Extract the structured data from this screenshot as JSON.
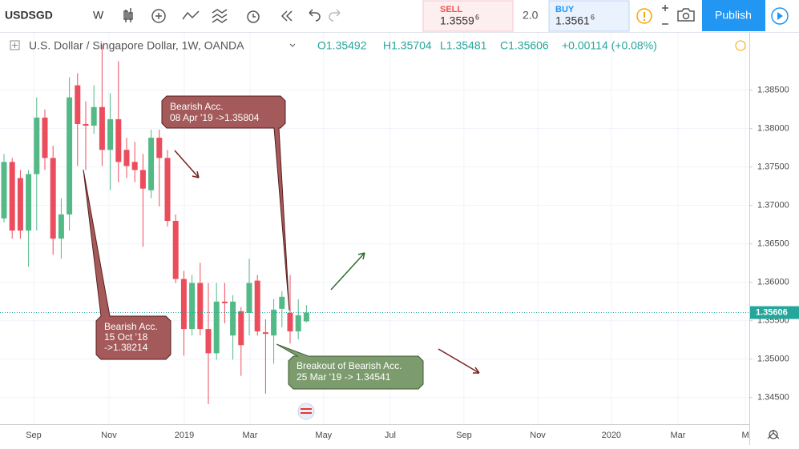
{
  "toolbar": {
    "symbol": "USDSGD",
    "interval": "W",
    "sell_label": "SELL",
    "sell_price": "1.3559",
    "sell_pip": "6",
    "spread": "2.0",
    "buy_label": "BUY",
    "buy_price": "1.3561",
    "buy_pip": "6",
    "publish": "Publish"
  },
  "legend": {
    "title": "U.S. Dollar / Singapore Dollar, 1W, OANDA",
    "open": "O1.35492",
    "high": "H1.35704",
    "low": "L1.35481",
    "close": "C1.35606",
    "change": "+0.00114 (+0.08%)"
  },
  "chart_data": {
    "type": "candlestick",
    "series": [
      {
        "up_color": "#53b987",
        "down_color": "#eb4d5c",
        "open": [
          1.36831,
          1.37566,
          1.37356,
          1.36673,
          1.37408,
          1.38143,
          1.37618,
          1.36568,
          1.36883,
          1.38563,
          1.38059,
          1.38038,
          1.3828,
          1.37723,
          1.38122,
          1.37723,
          1.37566,
          1.37461,
          1.37198,
          1.37881,
          1.37618,
          1.36799,
          1.36043,
          1.35392,
          1.35991,
          1.35392,
          1.35077,
          1.35749,
          1.35308,
          1.35623,
          1.35602,
          1.36022,
          1.3535,
          1.35308,
          1.35655,
          1.35602,
          1.35361,
          1.35492
        ],
        "high": [
          1.37671,
          1.37618,
          1.37461,
          1.37461,
          1.38406,
          1.38248,
          1.37776,
          1.37093,
          1.38668,
          1.38721,
          1.38353,
          1.38563,
          1.39088,
          1.38458,
          1.38878,
          1.37881,
          1.37828,
          1.37671,
          1.37986,
          1.37986,
          1.37723,
          1.36883,
          1.36148,
          1.36096,
          1.36253,
          1.35991,
          1.35991,
          1.35991,
          1.35833,
          1.35676,
          1.36306,
          1.36096,
          1.35518,
          1.35781,
          1.35886,
          1.36096,
          1.35781,
          1.35704
        ],
        "low": [
          1.36778,
          1.36568,
          1.36568,
          1.36201,
          1.36673,
          1.37461,
          1.36358,
          1.36306,
          1.36673,
          1.37513,
          1.37461,
          1.37933,
          1.37513,
          1.37198,
          1.37303,
          1.37356,
          1.37303,
          1.36463,
          1.37093,
          1.36988,
          1.36726,
          1.35991,
          1.35046,
          1.35308,
          1.35308,
          1.34416,
          1.34993,
          1.35466,
          1.34993,
          1.34783,
          1.35308,
          1.35308,
          1.34552,
          1.34941,
          1.35413,
          1.35203,
          1.35256,
          1.35481
        ],
        "close": [
          1.37566,
          1.36673,
          1.36673,
          1.37408,
          1.38143,
          1.37618,
          1.36568,
          1.36883,
          1.38406,
          1.38059,
          1.38038,
          1.3828,
          1.37723,
          1.38122,
          1.37566,
          1.37513,
          1.37461,
          1.37219,
          1.37881,
          1.37618,
          1.36799,
          1.36043,
          1.35392,
          1.35991,
          1.35392,
          1.35077,
          1.35749,
          1.35728,
          1.35749,
          1.35182,
          1.35991,
          1.35361,
          1.35329,
          1.35644,
          1.35812,
          1.35361,
          1.35571,
          1.35606
        ]
      }
    ],
    "last_price": 1.35606,
    "last_price_color": "#26a69a",
    "ylim": [
      1.34206,
      1.39246
    ],
    "yticks": [
      {
        "value": 1.345,
        "label": "1.34500"
      },
      {
        "value": 1.35,
        "label": "1.35000"
      },
      {
        "value": 1.355,
        "label": "1.35500"
      },
      {
        "value": 1.36,
        "label": "1.36000"
      },
      {
        "value": 1.365,
        "label": "1.36500"
      },
      {
        "value": 1.37,
        "label": "1.37000"
      },
      {
        "value": 1.375,
        "label": "1.37500"
      },
      {
        "value": 1.38,
        "label": "1.38000"
      },
      {
        "value": 1.385,
        "label": "1.38500"
      }
    ],
    "xlim": [
      -0.49,
      91.18
    ],
    "xticks": [
      {
        "value": 3.63,
        "label": "Sep"
      },
      {
        "value": 12.84,
        "label": "Nov"
      },
      {
        "value": 22.06,
        "label": "2019"
      },
      {
        "value": 30.1,
        "label": "Mar"
      },
      {
        "value": 39.1,
        "label": "May"
      },
      {
        "value": 47.25,
        "label": "Jul"
      },
      {
        "value": 56.27,
        "label": "Sep"
      },
      {
        "value": 65.3,
        "label": "Nov"
      },
      {
        "value": 74.3,
        "label": "2020"
      },
      {
        "value": 82.45,
        "label": "Mar"
      },
      {
        "value": 90.7,
        "label": "M"
      }
    ],
    "grid": true,
    "annotations": [
      {
        "lines": [
          "Bearish Acc.",
          "08 Apr '19 ->1.35804"
        ]
      },
      {
        "lines": [
          "Bearish Acc.",
          "15 Oct '18",
          "->1.38214"
        ]
      },
      {
        "lines": [
          "Breakout of Bearish Acc.",
          "25 Mar '19 -> 1.34541"
        ]
      }
    ]
  }
}
